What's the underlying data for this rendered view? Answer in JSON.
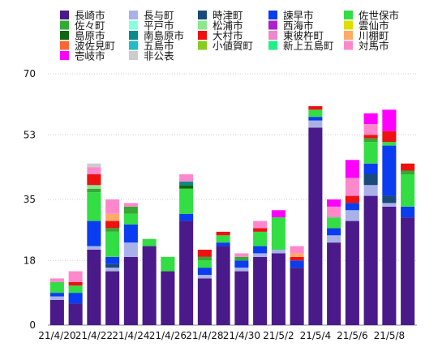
{
  "chart_data": {
    "type": "bar",
    "stacked": true,
    "title": "",
    "xlabel": "",
    "ylabel": "",
    "ylim": [
      0,
      70
    ],
    "yticks": [
      0,
      18,
      35,
      53,
      70
    ],
    "grid": true,
    "legend": "top",
    "categories": [
      "21/4/20",
      "21/4/21",
      "21/4/22",
      "21/4/23",
      "21/4/24",
      "21/4/25",
      "21/4/26",
      "21/4/27",
      "21/4/28",
      "21/4/29",
      "21/4/30",
      "21/5/1",
      "21/5/2",
      "21/5/3",
      "21/5/4",
      "21/5/5",
      "21/5/6",
      "21/5/7",
      "21/5/8",
      "21/5/9"
    ],
    "xtick_labels": [
      "21/4/20",
      "21/4/22",
      "21/4/24",
      "21/4/26",
      "21/4/28",
      "21/4/30",
      "21/5/2",
      "21/5/4",
      "21/5/6",
      "21/5/8"
    ],
    "series": [
      {
        "name": "長崎市",
        "color": "#4a1a8a",
        "values": [
          7,
          6,
          21,
          15,
          19,
          22,
          15,
          29,
          13,
          22,
          15,
          19,
          20,
          16,
          55,
          23,
          29,
          36,
          33,
          30
        ]
      },
      {
        "name": "長与町",
        "color": "#a8b2e8",
        "values": [
          1,
          0,
          1,
          1,
          4,
          0,
          0,
          0,
          1,
          0,
          1,
          1,
          1,
          0,
          2,
          2,
          3,
          3,
          1,
          0
        ]
      },
      {
        "name": "時津町",
        "color": "#1a4a7a",
        "values": [
          0,
          0,
          0,
          1,
          0,
          0,
          0,
          0,
          0,
          0,
          0,
          0,
          0,
          0,
          0,
          0,
          0,
          3,
          2,
          0
        ]
      },
      {
        "name": "諫早市",
        "color": "#0a3cf0",
        "values": [
          1,
          3,
          7,
          2,
          5,
          0,
          0,
          2,
          2,
          1,
          2,
          2,
          0,
          2,
          1,
          2,
          2,
          3,
          14,
          3
        ]
      },
      {
        "name": "佐世保市",
        "color": "#33dd44",
        "values": [
          3,
          2,
          8,
          7,
          3,
          2,
          4,
          7,
          2,
          2,
          0,
          4,
          9,
          0,
          2,
          3,
          0,
          6,
          1,
          9
        ]
      },
      {
        "name": "佐々町",
        "color": "#33aa33",
        "values": [
          0,
          0,
          1,
          1,
          2,
          0,
          0,
          0,
          1,
          0,
          1,
          0,
          0,
          0,
          0,
          0,
          0,
          1,
          0,
          1
        ]
      },
      {
        "name": "平戸市",
        "color": "#88ffdd",
        "values": [
          0,
          0,
          0,
          0,
          0,
          0,
          0,
          0,
          0,
          0,
          0,
          0,
          0,
          0,
          0,
          0,
          0,
          0,
          0,
          0
        ]
      },
      {
        "name": "松浦市",
        "color": "#8ee68e",
        "values": [
          0,
          0,
          1,
          0,
          0,
          0,
          0,
          0,
          0,
          0,
          0,
          0,
          0,
          0,
          0,
          0,
          0,
          0,
          0,
          0
        ]
      },
      {
        "name": "西海市",
        "color": "#aa22cc",
        "values": [
          0,
          0,
          0,
          0,
          0,
          0,
          0,
          0,
          0,
          0,
          0,
          0,
          0,
          0,
          0,
          0,
          0,
          0,
          0,
          0
        ]
      },
      {
        "name": "雲仙市",
        "color": "#dddd00",
        "values": [
          0,
          0,
          0,
          0,
          0,
          0,
          0,
          0,
          0,
          0,
          0,
          0,
          0,
          0,
          0,
          0,
          0,
          0,
          0,
          0
        ]
      },
      {
        "name": "島原市",
        "color": "#116611",
        "values": [
          0,
          0,
          0,
          0,
          0,
          0,
          0,
          1,
          0,
          0,
          0,
          0,
          0,
          0,
          0,
          0,
          0,
          0,
          0,
          0
        ]
      },
      {
        "name": "南島原市",
        "color": "#0a8a8a",
        "values": [
          0,
          0,
          0,
          0,
          0,
          0,
          0,
          1,
          0,
          0,
          0,
          0,
          0,
          0,
          0,
          0,
          0,
          0,
          0,
          0
        ]
      },
      {
        "name": "大村市",
        "color": "#ee1111",
        "values": [
          0,
          1,
          3,
          2,
          0,
          0,
          0,
          0,
          2,
          1,
          0,
          1,
          0,
          1,
          1,
          0,
          2,
          1,
          3,
          2
        ]
      },
      {
        "name": "東彼杵町",
        "color": "#ee88cc",
        "values": [
          0,
          0,
          0,
          0,
          0,
          0,
          0,
          0,
          0,
          0,
          0,
          0,
          0,
          0,
          0,
          0,
          0,
          0,
          0,
          0
        ]
      },
      {
        "name": "川棚町",
        "color": "#ffaa66",
        "values": [
          0,
          0,
          0,
          2,
          0,
          0,
          0,
          0,
          0,
          0,
          0,
          0,
          0,
          1,
          0,
          0,
          0,
          0,
          0,
          0
        ]
      },
      {
        "name": "波佐見町",
        "color": "#ff6633",
        "values": [
          0,
          0,
          0,
          0,
          0,
          0,
          0,
          0,
          0,
          0,
          0,
          0,
          0,
          0,
          0,
          0,
          0,
          0,
          0,
          0
        ]
      },
      {
        "name": "五島市",
        "color": "#22bbcc",
        "values": [
          0,
          0,
          0,
          0,
          0,
          0,
          0,
          0,
          0,
          0,
          0,
          0,
          0,
          0,
          0,
          0,
          0,
          0,
          0,
          0
        ]
      },
      {
        "name": "小値賀町",
        "color": "#88cc22",
        "values": [
          0,
          0,
          0,
          0,
          0,
          0,
          0,
          0,
          0,
          0,
          0,
          0,
          0,
          0,
          0,
          0,
          0,
          0,
          0,
          0
        ]
      },
      {
        "name": "新上五島町",
        "color": "#22ee88",
        "values": [
          0,
          0,
          0,
          0,
          0,
          0,
          0,
          0,
          0,
          0,
          0,
          0,
          0,
          0,
          0,
          0,
          0,
          0,
          0,
          0
        ]
      },
      {
        "name": "対馬市",
        "color": "#ff88cc",
        "values": [
          1,
          3,
          2,
          4,
          1,
          0,
          0,
          2,
          0,
          0,
          1,
          2,
          0,
          2,
          0,
          3,
          5,
          3,
          0,
          0
        ]
      },
      {
        "name": "壱岐市",
        "color": "#ff00ff",
        "values": [
          0,
          0,
          0,
          0,
          0,
          0,
          0,
          0,
          0,
          0,
          0,
          0,
          2,
          0,
          0,
          2,
          5,
          3,
          6,
          0
        ]
      },
      {
        "name": "非公表",
        "color": "#cccccc",
        "values": [
          0,
          0,
          1,
          0,
          0,
          0,
          0,
          0,
          0,
          0,
          0,
          0,
          0,
          0,
          0,
          0,
          0,
          0,
          0,
          0
        ]
      }
    ],
    "corrections": [
      {
        "series": "佐世保市",
        "category_index": 1,
        "note": "aux"
      }
    ]
  }
}
